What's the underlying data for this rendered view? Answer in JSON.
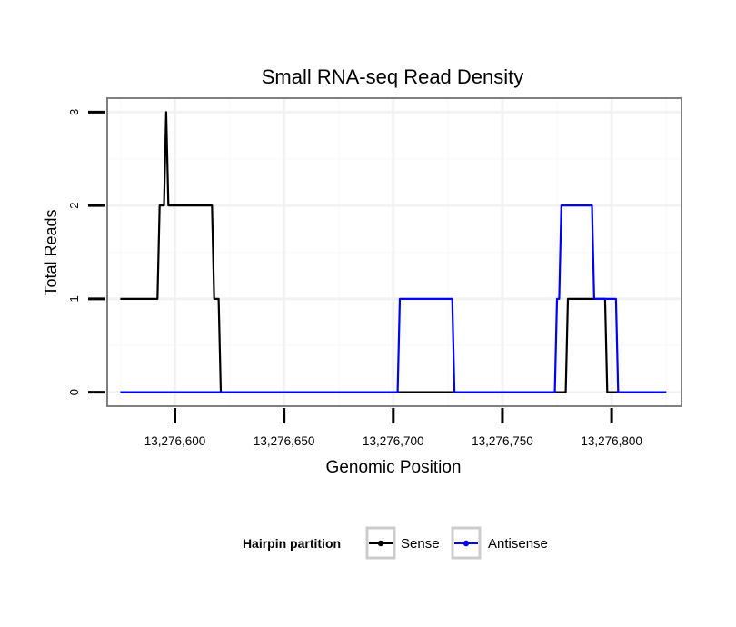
{
  "chart_data": {
    "type": "line",
    "title": "Small RNA-seq Read Density",
    "xlabel": "Genomic Position",
    "ylabel": "Total Reads",
    "xlim": [
      13276569,
      13276832
    ],
    "ylim": [
      -0.15,
      3.15
    ],
    "xticks": [
      13276600,
      13276650,
      13276700,
      13276750,
      13276800
    ],
    "xtick_labels": [
      "13,276,600",
      "13,276,650",
      "13,276,700",
      "13,276,750",
      "13,276,800"
    ],
    "yticks": [
      0,
      1,
      2,
      3
    ],
    "ytick_labels": [
      "0",
      "1",
      "2",
      "3"
    ],
    "grid": true,
    "legend": {
      "title": "Hairpin partition",
      "position": "bottom",
      "entries": [
        {
          "label": "Sense",
          "color": "#000000"
        },
        {
          "label": "Antisense",
          "color": "#0000ff"
        }
      ]
    },
    "series": [
      {
        "name": "Sense",
        "color": "#000000",
        "x": [
          13276575,
          13276592,
          13276593,
          13276595,
          13276596,
          13276597,
          13276598,
          13276617,
          13276618,
          13276620,
          13276621,
          13276779,
          13276780,
          13276797,
          13276798,
          13276825
        ],
        "y": [
          1,
          1,
          2,
          2,
          3,
          2,
          2,
          2,
          1,
          1,
          0,
          0,
          1,
          1,
          0,
          0
        ]
      },
      {
        "name": "Antisense",
        "color": "#0000ff",
        "x": [
          13276575,
          13276621,
          13276702,
          13276703,
          13276727,
          13276728,
          13276774,
          13276775,
          13276776,
          13276777,
          13276791,
          13276792,
          13276802,
          13276803,
          13276825
        ],
        "y": [
          0,
          0,
          0,
          1,
          1,
          0,
          0,
          1,
          1,
          2,
          2,
          1,
          1,
          0,
          0
        ]
      }
    ]
  }
}
